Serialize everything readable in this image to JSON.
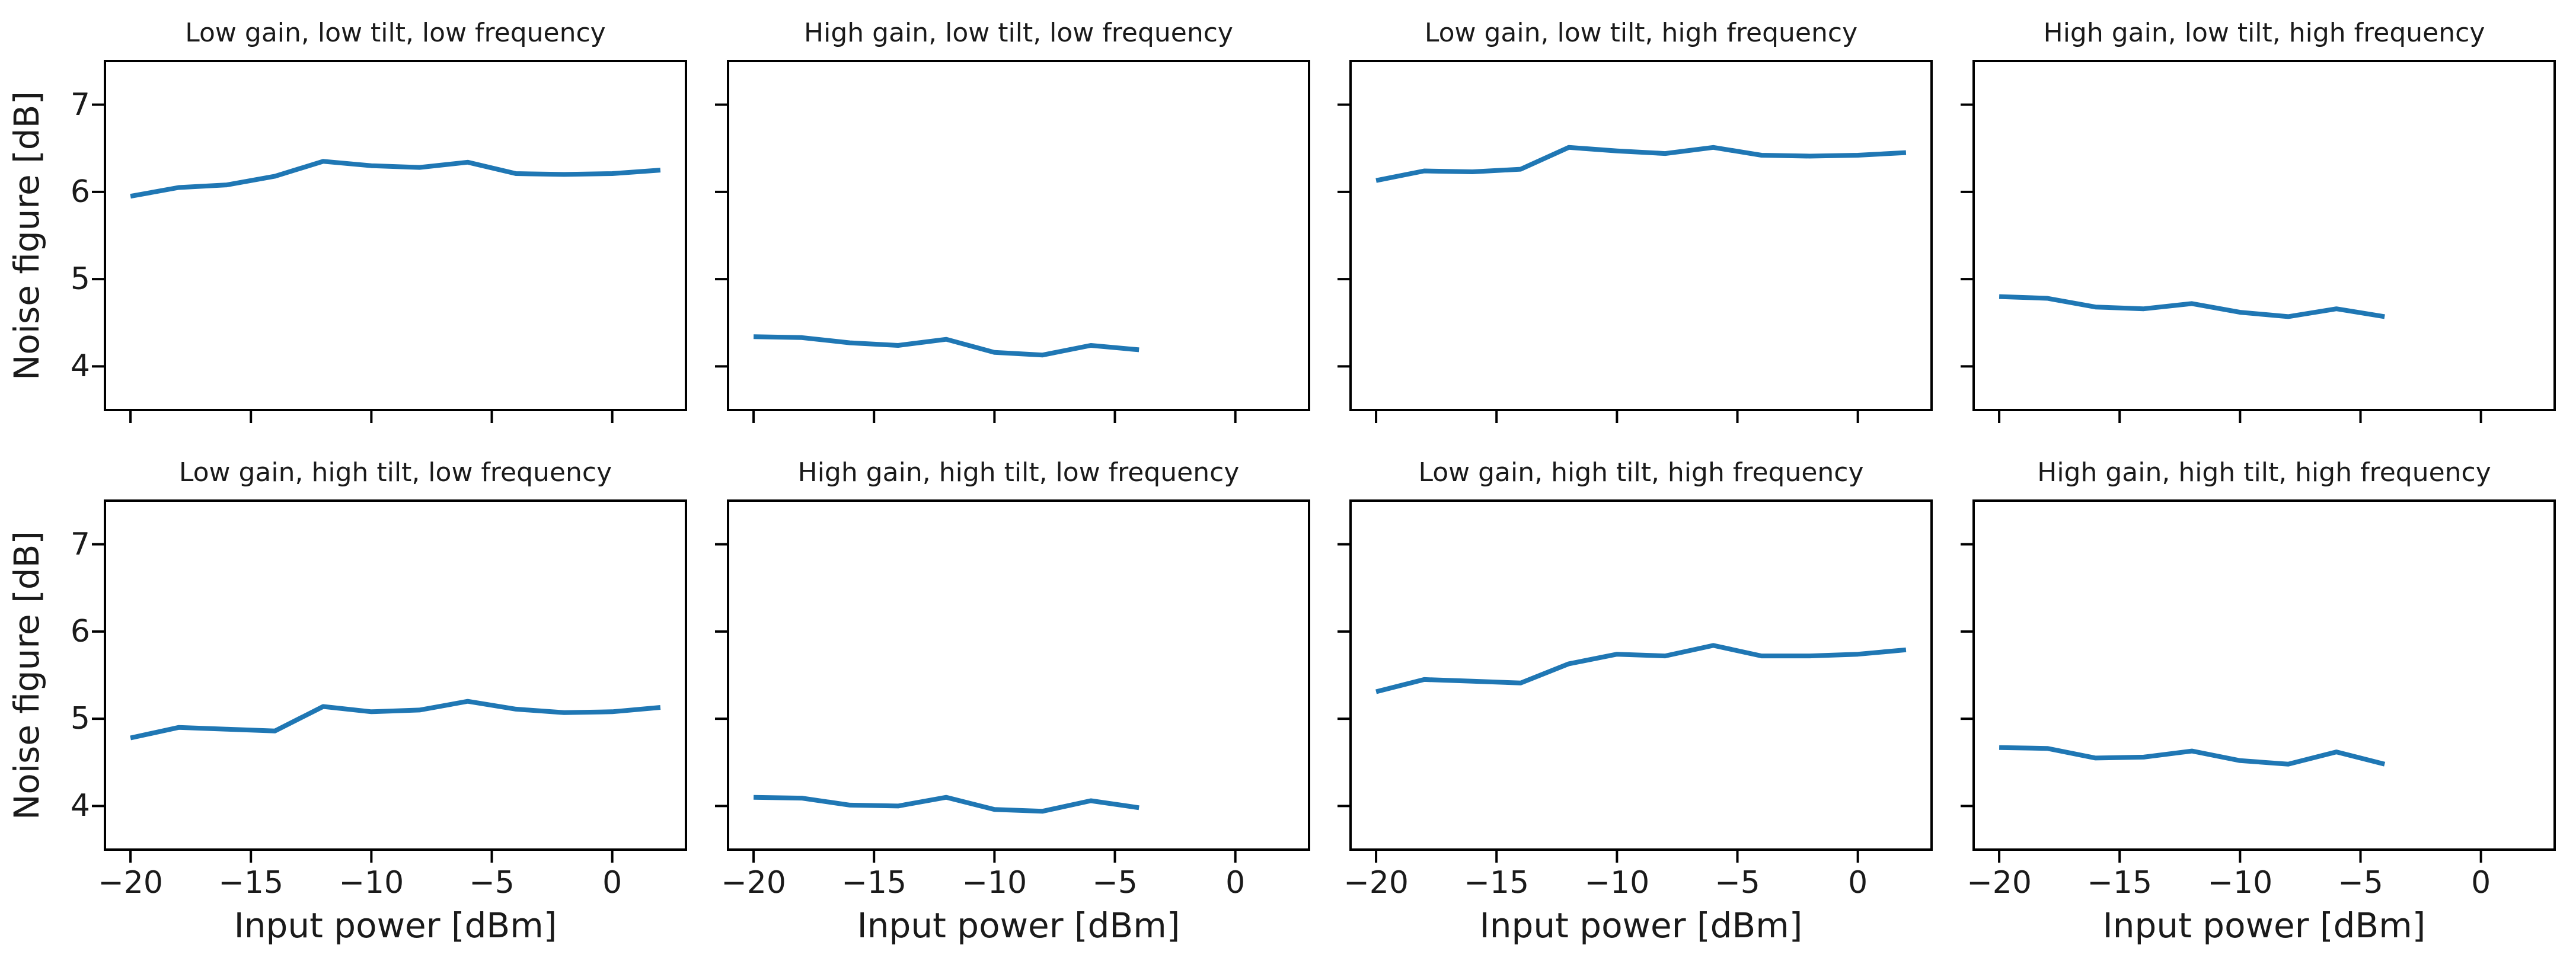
{
  "figure": {
    "background": "#ffffff",
    "text_color": "#1a1a1a",
    "spine_color": "#000000",
    "line_color": "#1f77b4",
    "nrows": 2,
    "ncols": 4
  },
  "axes": {
    "x_ticklabels": [
      "−20",
      "−15",
      "−10",
      "−5",
      "0"
    ],
    "x_tick_values": [
      -20,
      -15,
      -10,
      -5,
      0
    ],
    "y_ticklabels": [
      "7",
      "6",
      "5",
      "4"
    ],
    "y_tick_values": [
      7,
      6,
      5,
      4
    ],
    "xlim": [
      -21.06,
      3.06
    ],
    "ylim": [
      3.5,
      7.5
    ],
    "grid": false,
    "legend": "none"
  },
  "chart_data": [
    {
      "type": "line",
      "title": "Low gain, low tilt, low frequency",
      "xlabel": "",
      "ylabel": "Noise figure [dB]",
      "x": [
        -20,
        -18,
        -16,
        -14,
        -12,
        -10,
        -8,
        -6,
        -4,
        -2,
        0,
        2
      ],
      "y": [
        5.95,
        6.05,
        6.08,
        6.18,
        6.35,
        6.3,
        6.28,
        6.34,
        6.21,
        6.2,
        6.21,
        6.25
      ]
    },
    {
      "type": "line",
      "title": "High gain, low tilt, low frequency",
      "xlabel": "",
      "ylabel": "",
      "x": [
        -20,
        -18,
        -16,
        -14,
        -12,
        -10,
        -8,
        -6,
        -4
      ],
      "y": [
        4.34,
        4.33,
        4.27,
        4.24,
        4.31,
        4.16,
        4.13,
        4.24,
        4.19
      ]
    },
    {
      "type": "line",
      "title": "Low gain, low tilt, high frequency",
      "xlabel": "",
      "ylabel": "",
      "x": [
        -20,
        -18,
        -16,
        -14,
        -12,
        -10,
        -8,
        -6,
        -4,
        -2,
        0,
        2
      ],
      "y": [
        6.13,
        6.24,
        6.23,
        6.26,
        6.51,
        6.47,
        6.44,
        6.51,
        6.42,
        6.41,
        6.42,
        6.45
      ]
    },
    {
      "type": "line",
      "title": "High gain, low tilt, high frequency",
      "xlabel": "",
      "ylabel": "",
      "x": [
        -20,
        -18,
        -16,
        -14,
        -12,
        -10,
        -8,
        -6,
        -4
      ],
      "y": [
        4.8,
        4.78,
        4.68,
        4.66,
        4.72,
        4.62,
        4.57,
        4.66,
        4.57
      ]
    },
    {
      "type": "line",
      "title": "Low gain, high tilt, low frequency",
      "xlabel": "Input power [dBm]",
      "ylabel": "Noise figure [dB]",
      "x": [
        -20,
        -18,
        -16,
        -14,
        -12,
        -10,
        -8,
        -6,
        -4,
        -2,
        0,
        2
      ],
      "y": [
        4.78,
        4.9,
        4.88,
        4.86,
        5.14,
        5.08,
        5.1,
        5.2,
        5.11,
        5.07,
        5.08,
        5.13
      ]
    },
    {
      "type": "line",
      "title": "High gain, high tilt, low frequency",
      "xlabel": "Input power [dBm]",
      "ylabel": "",
      "x": [
        -20,
        -18,
        -16,
        -14,
        -12,
        -10,
        -8,
        -6,
        -4
      ],
      "y": [
        4.1,
        4.09,
        4.01,
        4.0,
        4.1,
        3.96,
        3.94,
        4.06,
        3.98
      ]
    },
    {
      "type": "line",
      "title": "Low gain, high tilt, high frequency",
      "xlabel": "Input power [dBm]",
      "ylabel": "",
      "x": [
        -20,
        -18,
        -16,
        -14,
        -12,
        -10,
        -8,
        -6,
        -4,
        -2,
        0,
        2
      ],
      "y": [
        5.31,
        5.45,
        5.43,
        5.41,
        5.63,
        5.74,
        5.72,
        5.84,
        5.72,
        5.72,
        5.74,
        5.79
      ]
    },
    {
      "type": "line",
      "title": "High gain, high tilt, high frequency",
      "xlabel": "Input power [dBm]",
      "ylabel": "",
      "x": [
        -20,
        -18,
        -16,
        -14,
        -12,
        -10,
        -8,
        -6,
        -4
      ],
      "y": [
        4.67,
        4.66,
        4.55,
        4.56,
        4.63,
        4.52,
        4.48,
        4.62,
        4.48
      ]
    }
  ]
}
